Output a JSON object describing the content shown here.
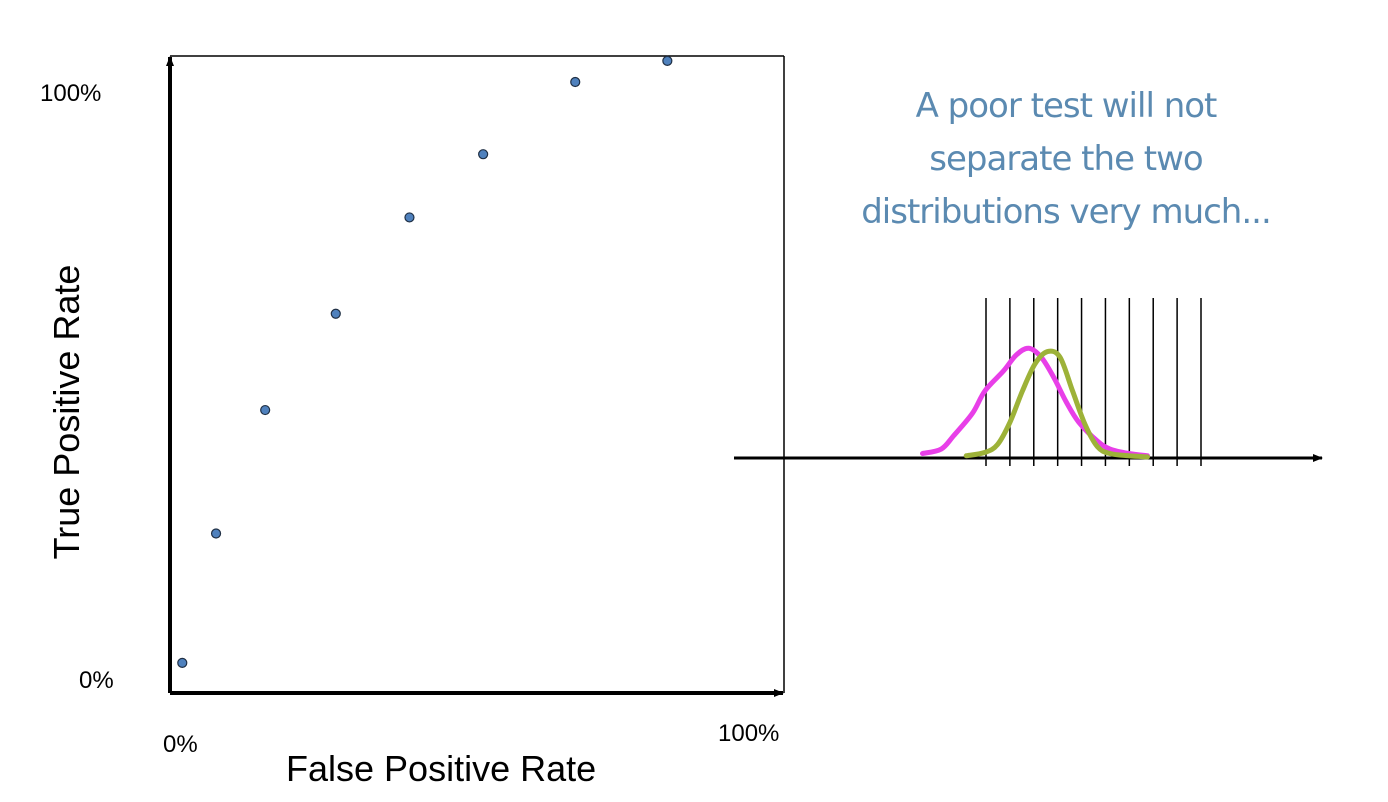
{
  "chart_data": [
    {
      "type": "scatter",
      "xlabel": "False Positive Rate",
      "ylabel": "True Positive Rate",
      "x_tick_labels": [
        "0%",
        "100%"
      ],
      "y_tick_labels": [
        "0%",
        "100%"
      ],
      "xlim": [
        0,
        100
      ],
      "ylim": [
        0,
        100
      ],
      "point_color": "#4f81bd",
      "series": [
        {
          "x": [
            2,
            7.5,
            15.5,
            27,
            39,
            51,
            66,
            81
          ],
          "y": [
            5,
            26.5,
            47,
            63,
            79,
            89.5,
            101.5,
            105
          ]
        }
      ]
    },
    {
      "type": "line",
      "caption": [
        "A poor test will not",
        "separate the two",
        "distributions very much..."
      ],
      "caption_color": "#5b8ab1",
      "threshold_count": 10,
      "series": [
        {
          "color": "#e83fe8",
          "x": [
            -10,
            -7,
            -5,
            -2,
            0,
            3,
            5,
            7,
            9,
            11,
            13,
            15,
            18,
            20,
            23,
            26
          ],
          "y": [
            0.04,
            0.08,
            0.2,
            0.4,
            0.6,
            0.78,
            0.92,
            0.98,
            0.9,
            0.72,
            0.5,
            0.32,
            0.15,
            0.08,
            0.04,
            0.02
          ]
        },
        {
          "color": "#9db238",
          "x": [
            -3,
            0,
            2,
            4,
            6,
            8,
            10,
            12,
            14,
            16,
            18,
            20,
            23,
            26
          ],
          "y": [
            0.02,
            0.05,
            0.12,
            0.32,
            0.6,
            0.84,
            0.95,
            0.9,
            0.6,
            0.3,
            0.1,
            0.04,
            0.02,
            0.01
          ]
        }
      ]
    }
  ]
}
